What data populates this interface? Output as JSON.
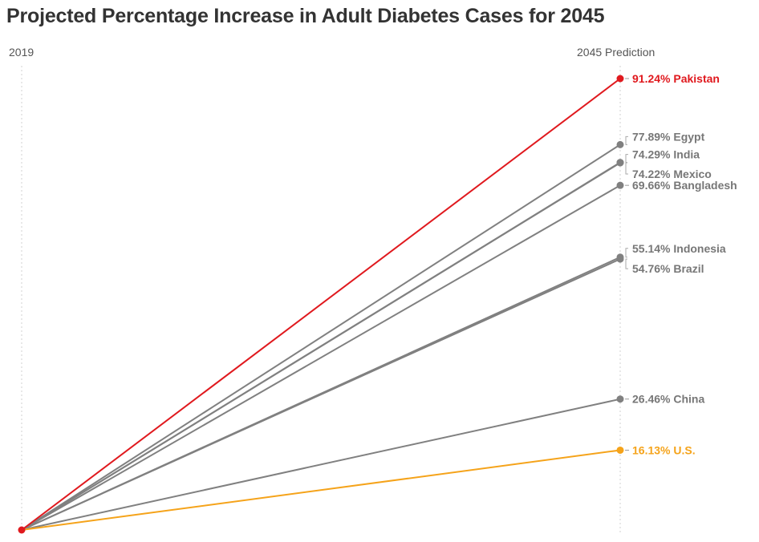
{
  "chart_data": {
    "type": "line",
    "title": "Projected Percentage Increase in Adult Diabetes Cases for 2045",
    "x": [
      "2019",
      "2045 Prediction"
    ],
    "ylim": [
      0,
      100
    ],
    "grid": false,
    "series": [
      {
        "name": "Pakistan",
        "values": [
          0,
          91.24
        ],
        "label": "91.24% Pakistan",
        "color": "#e0191e",
        "label_dy": 0
      },
      {
        "name": "Egypt",
        "values": [
          0,
          77.89
        ],
        "label": "77.89% Egypt",
        "color": "#808080",
        "label_dy": -10
      },
      {
        "name": "India",
        "values": [
          0,
          74.29
        ],
        "label": "74.29% India",
        "color": "#808080",
        "label_dy": -10
      },
      {
        "name": "Mexico",
        "values": [
          0,
          74.22
        ],
        "label": "74.22% Mexico",
        "color": "#808080",
        "label_dy": 14
      },
      {
        "name": "Bangladesh",
        "values": [
          0,
          69.66
        ],
        "label": "69.66% Bangladesh",
        "color": "#808080",
        "label_dy": 0
      },
      {
        "name": "Indonesia",
        "values": [
          0,
          55.14
        ],
        "label": "55.14% Indonesia",
        "color": "#808080",
        "label_dy": -11
      },
      {
        "name": "Brazil",
        "values": [
          0,
          54.76
        ],
        "label": "54.76% Brazil",
        "color": "#808080",
        "label_dy": 12
      },
      {
        "name": "China",
        "values": [
          0,
          26.46
        ],
        "label": "26.46% China",
        "color": "#808080",
        "label_dy": 0
      },
      {
        "name": "U.S.",
        "values": [
          0,
          16.13
        ],
        "label": "16.13% U.S.",
        "color": "#f5a31a",
        "label_dy": 0
      }
    ]
  }
}
